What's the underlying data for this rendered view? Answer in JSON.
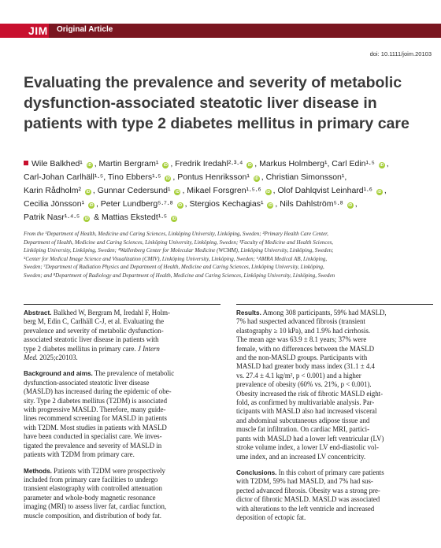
{
  "header": {
    "journal": "JIM",
    "article_type": "Original Article",
    "doi": "doi: 10.1111/joim.20103",
    "brand_color": "#c8102e",
    "bar_color": "#7a1620"
  },
  "title_lines": [
    "Evaluating the prevalence and severity of metabolic",
    "dysfunction-associated steatotic liver disease in",
    "patients with type 2 diabetes mellitus in primary care"
  ],
  "author_lines": [
    "Wile Balkhed¹ ⓘ, Martin Bergram¹ ⓘ, Fredrik Iredahl²·³·⁴ ⓘ, Markus Holmberg¹, Carl Edin¹·⁵ ⓘ,",
    "Carl-Johan Carlhäll¹·⁵, Tino Ebbers¹·⁵ ⓘ, Pontus Henriksson¹ ⓘ, Christian Simonsson¹,",
    "Karin Rådholm² ⓘ, Gunnar Cedersund¹ ⓘ, Mikael Forsgren¹·⁵·⁶ ⓘ, Olof Dahlqvist Leinhard¹·⁶ ⓘ,",
    "Cecilia Jönsson¹ ⓘ, Peter Lundberg⁵·⁷·⁸ ⓘ, Stergios Kechagias¹ ⓘ, Nils Dahlström⁵·⁸ ⓘ,",
    "Patrik Nasr¹·⁴·⁵ ⓘ & Mattias Ekstedt¹·⁵ ⓘ"
  ],
  "affiliation_lines": [
    "From the ¹Department of Health, Medicine and Caring Sciences, Linköping University, Linköping, Sweden; ²Primary Health Care Center,",
    "Department of Health, Medicine and Caring Sciences, Linköping University, Linköping, Sweden; ³Faculty of Medicine and Health Sciences,",
    "Linköping University, Linköping, Sweden; ⁴Wallenberg Center for Molecular Medicine (WCMM), Linköping University, Linköping, Sweden;",
    "⁵Center for Medical Image Science and Visualization (CMIV), Linköping University, Linköping, Sweden; ⁶AMRA Medical AB, Linköping,",
    "Sweden; ⁷Department of Radiation Physics and Department of Health, Medicine and Caring Sciences, Linköping University, Linköping,",
    "Sweden; and ⁸Department of Radiology and Department of Health, Medicine and Caring Sciences, Linköping University, Linköping, Sweden"
  ],
  "abstract": {
    "heading": "Abstract.",
    "lines": [
      "Balkhed W, Bergram M, Iredahl F, Holm-",
      "berg M, Edin C, Carlhäll C-J, et al. Evaluating the",
      "prevalence and severity of metabolic dysfunction-",
      "associated steatotic liver disease in patients with",
      "type 2 diabetes mellitus in primary care."
    ],
    "journal": "J Intern",
    "journal2": "Med.",
    "citation": "2025;c20103."
  },
  "background": {
    "heading": "Background and aims.",
    "lines": [
      "The prevalence of metabolic",
      "dysfunction-associated steatotic liver disease",
      "(MASLD) has increased during the epidemic of obe-",
      "sity. Type 2 diabetes mellitus (T2DM) is associated",
      "with progressive MASLD. Therefore, many guide-",
      "lines recommend screening for MASLD in patients",
      "with T2DM. Most studies in patients with MASLD",
      "have been conducted in specialist care. We inves-",
      "tigated the prevalence and severity of MASLD in",
      "patients with T2DM from primary care."
    ]
  },
  "methods": {
    "heading": "Methods.",
    "lines": [
      "Patients with T2DM were prospectively",
      "included from primary care facilities to undergo",
      "transient elastography with controlled attenuation",
      "parameter and whole-body magnetic resonance",
      "imaging (MRI) to assess liver fat, cardiac function,",
      "muscle composition, and distribution of body fat."
    ]
  },
  "results": {
    "heading": "Results.",
    "lines": [
      "Among 308 participants, 59% had MASLD,",
      "7% had suspected advanced fibrosis (transient",
      "elastography ≥ 10 kPa), and 1.9% had cirrhosis.",
      "The mean age was 63.9 ± 8.1 years; 37% were",
      "female, with no differences between the MASLD",
      "and the non-MASLD groups. Participants with",
      "MASLD had greater body mass index (31.1 ± 4.4",
      "vs. 27.4 ± 4.1 kg/m², p < 0.001) and a higher",
      "prevalence of obesity (60% vs. 21%, p < 0.001).",
      "Obesity increased the risk of fibrotic MASLD eight-",
      "fold, as confirmed by multivariable analysis. Par-",
      "ticipants with MASLD also had increased visceral",
      "and abdominal subcutaneous adipose tissue and",
      "muscle fat infiltration. On cardiac MRI, partici-",
      "pants with MASLD had a lower left ventricular (LV)",
      "stroke volume index, a lower LV end-diastolic vol-",
      "ume index, and an increased LV concentricity."
    ]
  },
  "conclusions": {
    "heading": "Conclusions.",
    "lines": [
      "In this cohort of primary care patients",
      "with T2DM, 59% had MASLD, and 7% had sus-",
      "pected advanced fibrosis. Obesity was a strong pre-",
      "dictor of fibrotic MASLD. MASLD was associated",
      "with alterations to the left ventricle and increased",
      "deposition of ectopic fat."
    ]
  }
}
